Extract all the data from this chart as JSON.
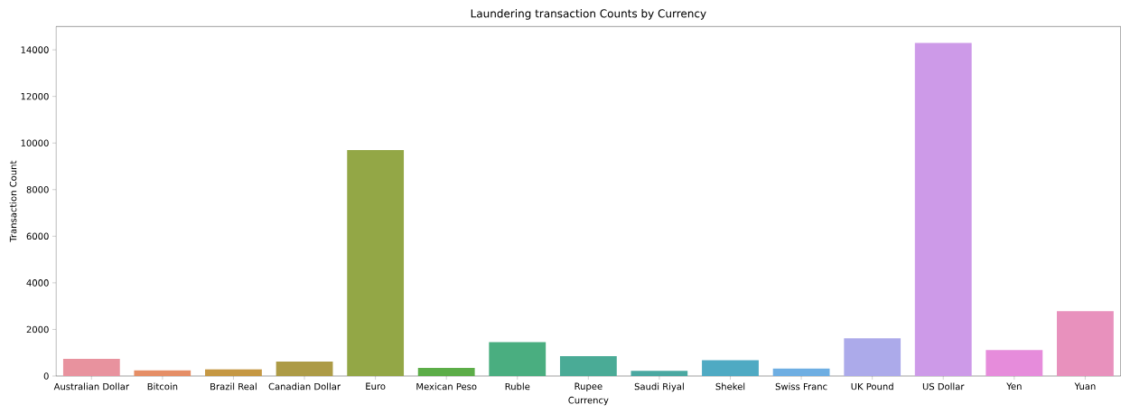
{
  "chart_data": {
    "type": "bar",
    "title": "Laundering transaction Counts by Currency",
    "xlabel": "Currency",
    "ylabel": "Transaction Count",
    "categories": [
      "Australian Dollar",
      "Bitcoin",
      "Brazil Real",
      "Canadian Dollar",
      "Euro",
      "Mexican Peso",
      "Ruble",
      "Rupee",
      "Saudi Riyal",
      "Shekel",
      "Swiss Franc",
      "UK Pound",
      "US Dollar",
      "Yen",
      "Yuan"
    ],
    "values": [
      740,
      250,
      290,
      620,
      9700,
      350,
      1450,
      850,
      220,
      680,
      320,
      1620,
      14300,
      1120,
      2780
    ],
    "colors": [
      "#e8929e",
      "#e58e66",
      "#c59844",
      "#ad9b46",
      "#93a746",
      "#5cad48",
      "#4aae80",
      "#4aab96",
      "#4aa8a1",
      "#4faac3",
      "#6eaee2",
      "#acaaea",
      "#cd9ae8",
      "#e68cdb",
      "#e891bd"
    ],
    "ylim": [
      0,
      15000
    ],
    "yticks": [
      0,
      2000,
      4000,
      6000,
      8000,
      10000,
      12000,
      14000
    ],
    "grid": false
  }
}
